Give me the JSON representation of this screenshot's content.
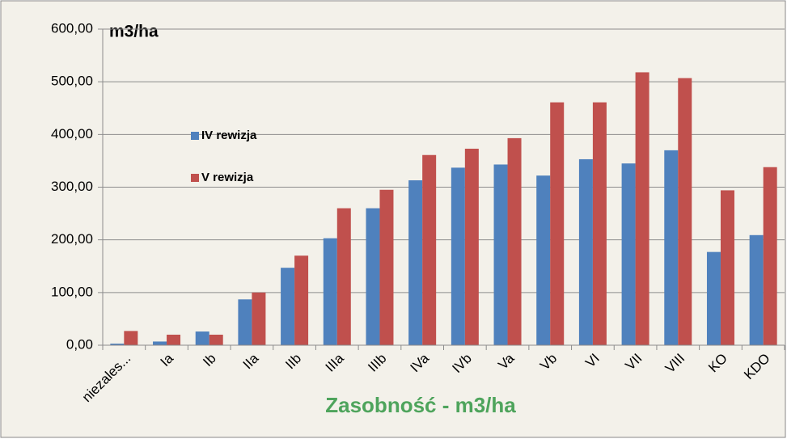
{
  "chart_data": {
    "type": "bar",
    "title": "m3/ha",
    "x_label": "Zasobność - m3/ha",
    "categories": [
      "niezales...",
      "Ia",
      "Ib",
      "IIa",
      "IIb",
      "IIIa",
      "IIIb",
      "IVa",
      "IVb",
      "Va",
      "Vb",
      "VI",
      "VII",
      "VIII",
      "KO",
      "KDO"
    ],
    "series": [
      {
        "name": "IV rewizja",
        "color": "#4f81bd",
        "values": [
          3,
          7,
          26,
          87,
          147,
          203,
          260,
          313,
          337,
          343,
          322,
          353,
          345,
          370,
          177,
          209
        ]
      },
      {
        "name": "V rewizja",
        "color": "#c0504d",
        "values": [
          27,
          20,
          20,
          100,
          170,
          260,
          295,
          361,
          373,
          393,
          461,
          461,
          518,
          507,
          294,
          338
        ]
      }
    ],
    "ylim": [
      0,
      600
    ],
    "yticks": [
      {
        "value": 0,
        "label": "0,00"
      },
      {
        "value": 100,
        "label": "100,00"
      },
      {
        "value": 200,
        "label": "200,00"
      },
      {
        "value": 300,
        "label": "300,00"
      },
      {
        "value": 400,
        "label": "400,00"
      },
      {
        "value": 500,
        "label": "500,00"
      },
      {
        "value": 600,
        "label": "600,00"
      }
    ],
    "grid": true
  }
}
